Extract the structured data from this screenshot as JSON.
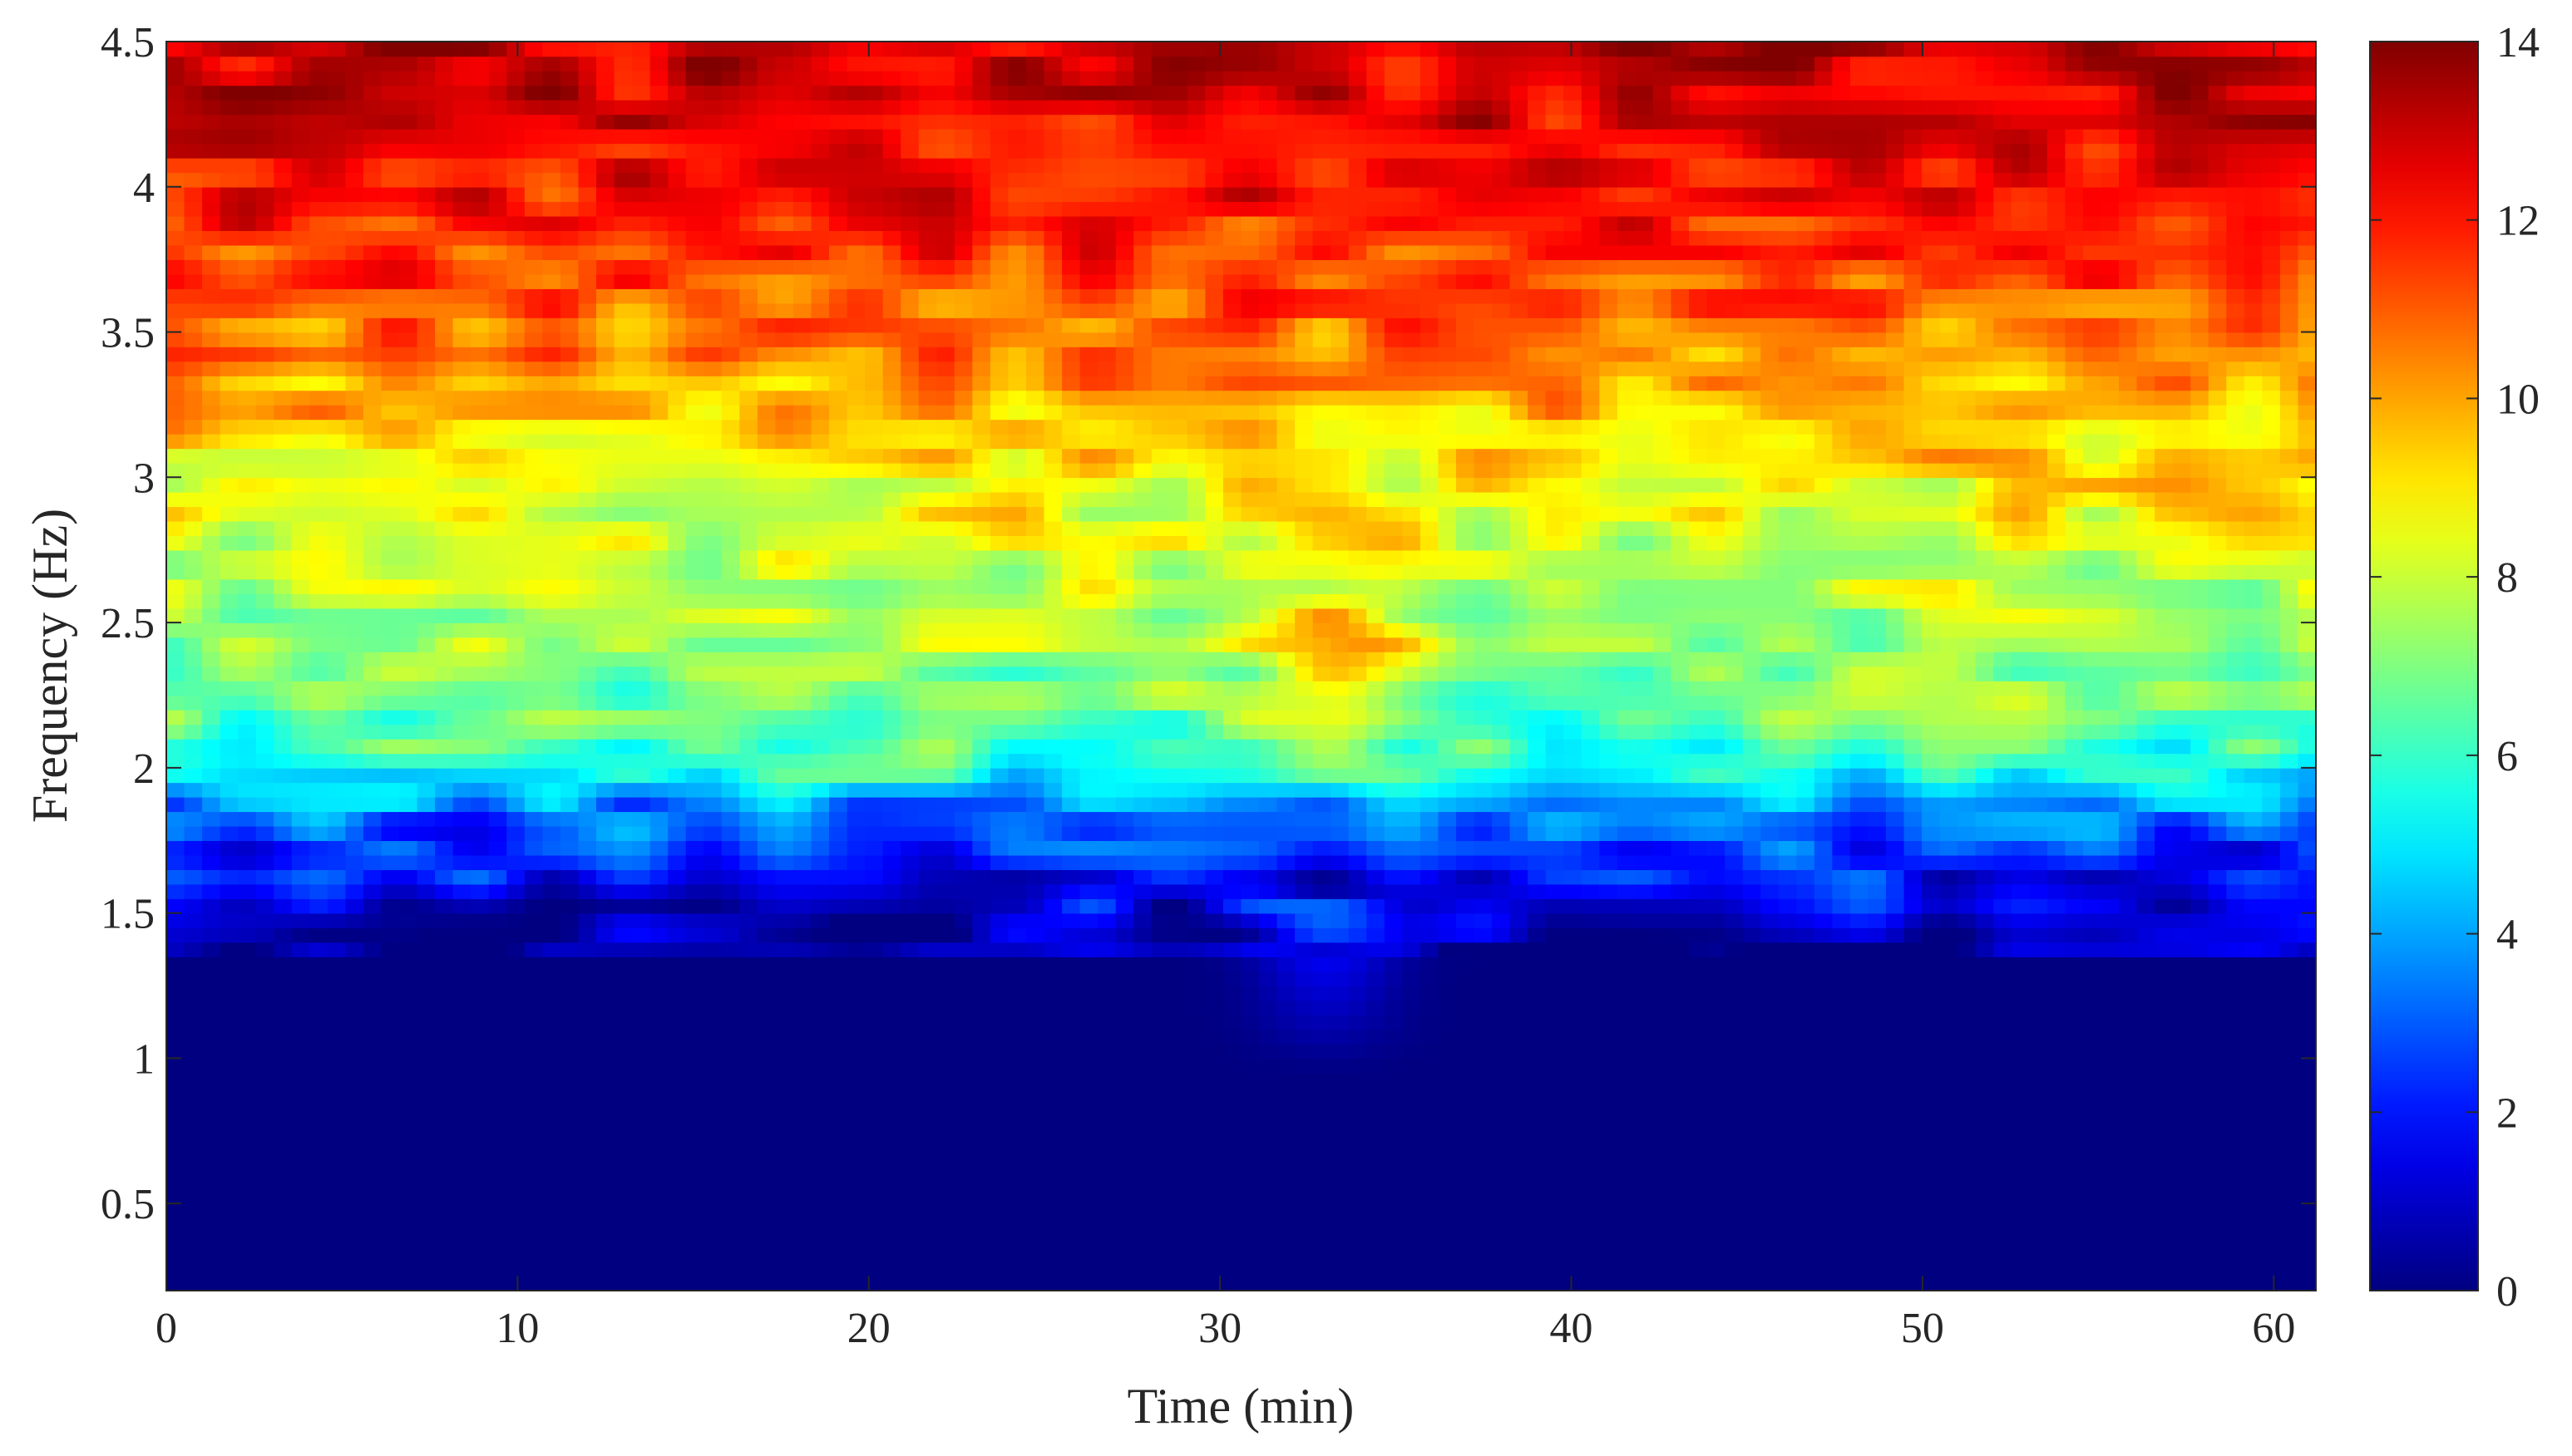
{
  "chart_data": {
    "type": "heatmap",
    "title": "",
    "xlabel": "Time (min)",
    "ylabel": "Frequency (Hz)",
    "xlim": [
      0,
      61.2
    ],
    "ylim": [
      0.2,
      4.5
    ],
    "xticks": [
      0,
      10,
      20,
      30,
      40,
      50,
      60
    ],
    "yticks": [
      0.5,
      1,
      1.5,
      2,
      2.5,
      3,
      3.5,
      4,
      4.5
    ],
    "xtick_labels": [
      "0",
      "10",
      "20",
      "30",
      "40",
      "50",
      "60"
    ],
    "ytick_labels": [
      "0.5",
      "1",
      "1.5",
      "2",
      "2.5",
      "3",
      "3.5",
      "4",
      "4.5"
    ],
    "colormap": "jet",
    "colorbar": {
      "range": [
        0,
        14
      ],
      "ticks": [
        0,
        2,
        4,
        6,
        8,
        10,
        12,
        14
      ],
      "tick_labels": [
        "0",
        "2",
        "4",
        "6",
        "8",
        "10",
        "12",
        "14"
      ],
      "position": "right"
    },
    "grid": false,
    "frequency_profile": {
      "frequency_hz": [
        0.2,
        1.35,
        1.55,
        1.85,
        2.0,
        2.2,
        2.5,
        2.8,
        3.0,
        3.3,
        3.6,
        3.9,
        4.2,
        4.5
      ],
      "mean_value": [
        0,
        0,
        1.5,
        3.2,
        5.8,
        6.8,
        7.6,
        8.3,
        9.0,
        10.0,
        11.0,
        12.0,
        12.6,
        12.9
      ]
    },
    "features": [
      {
        "time_min": 33.5,
        "frequency_hz": 2.3,
        "note": "warm streak extending down to ~1.9 Hz"
      },
      {
        "time_min": 33.0,
        "frequency_hz": 1.4,
        "note": "light blue patch down to ~1.0 Hz"
      }
    ]
  }
}
